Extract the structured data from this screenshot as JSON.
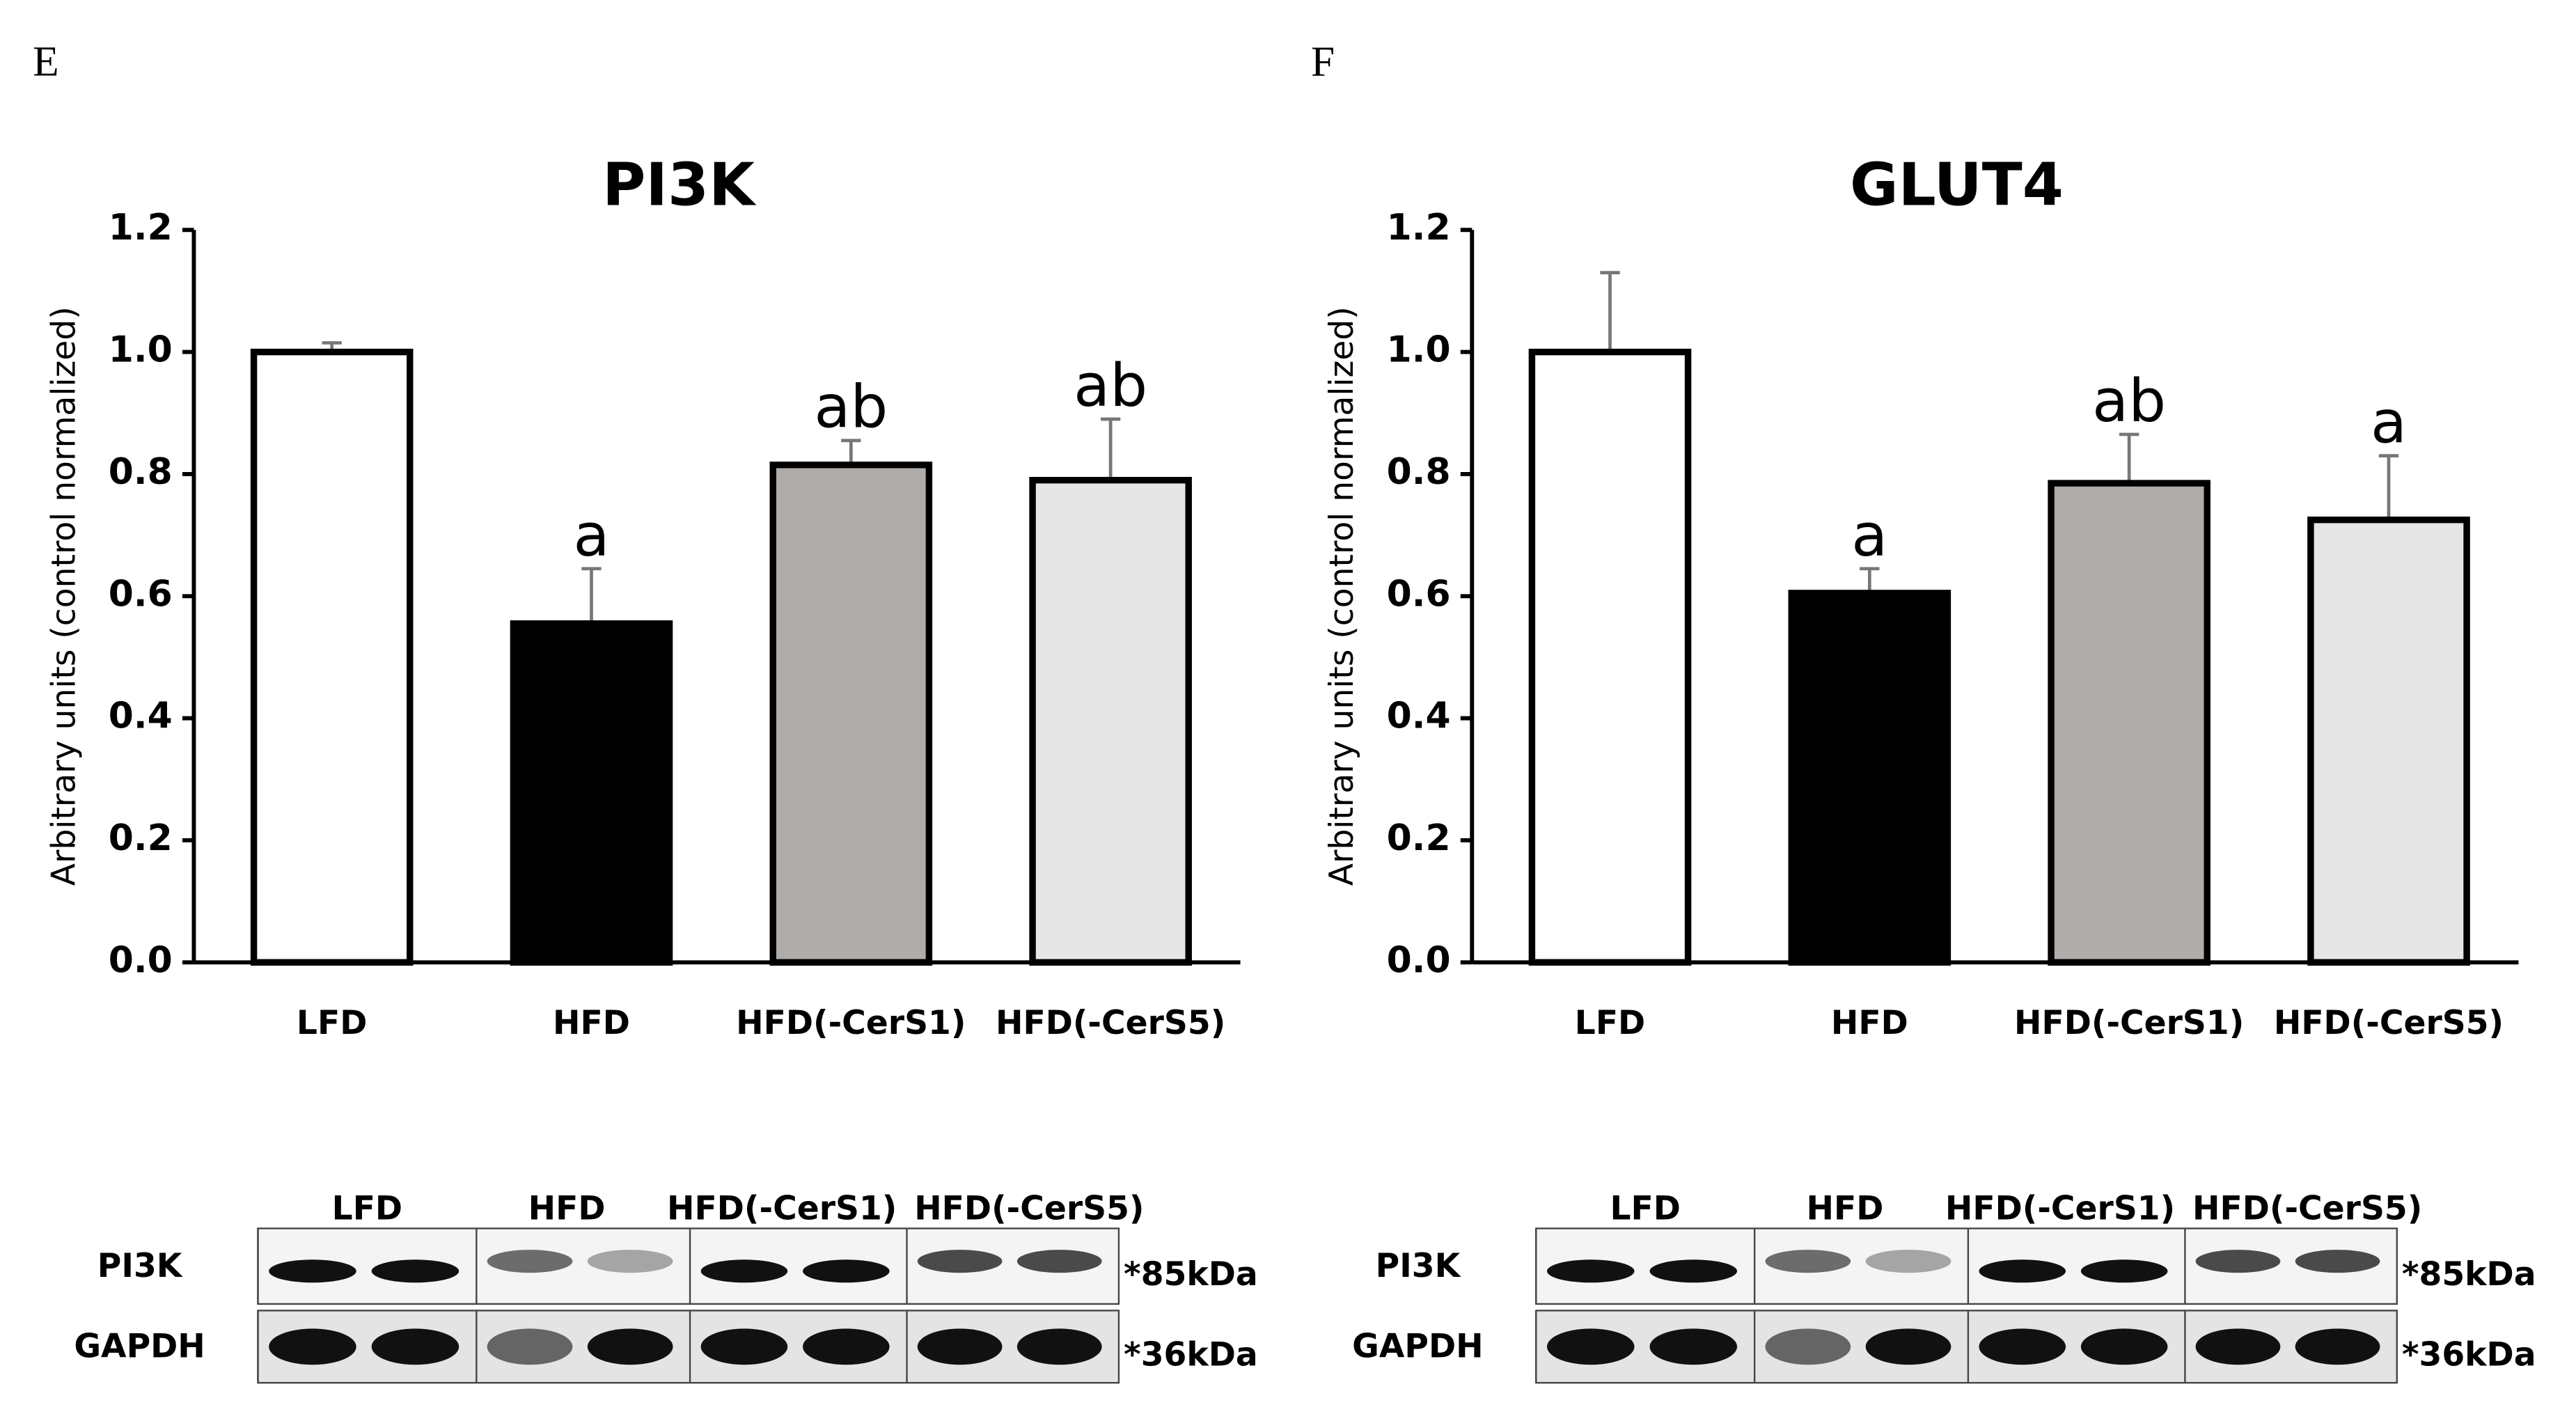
{
  "chart_data": [
    {
      "type": "bar",
      "panel": "E",
      "title": "PI3K",
      "y_label": "Arbitrary units (control normalized)",
      "categories": [
        "LFD",
        "HFD",
        "HFD(-CerS1)",
        "HFD(-CerS5)"
      ],
      "values": [
        1.0,
        0.555,
        0.815,
        0.79
      ],
      "errors": [
        0.015,
        0.09,
        0.04,
        0.1
      ],
      "annotations": [
        null,
        "a",
        "ab",
        "ab"
      ],
      "colors": [
        "#ffffff",
        "#000000",
        "#b0aca9",
        "#e6e6e6"
      ],
      "ylim": [
        0,
        1.2
      ],
      "yticks": [
        {
          "value": 0,
          "label": "0.0"
        },
        0.2,
        0.4,
        0.6,
        0.8,
        {
          "value": 1,
          "label": "1.0"
        },
        1.2
      ],
      "blot": {
        "lanes": [
          "LFD",
          "HFD",
          "HFD(-CerS1)",
          "HFD(-CerS5)"
        ],
        "rows": [
          "PI3K",
          "GAPDH"
        ],
        "sizes": [
          "*85kDa",
          "*36kDa"
        ]
      }
    },
    {
      "type": "bar",
      "panel": "F",
      "title": "GLUT4",
      "y_label": "Arbitrary units (control normalized)",
      "categories": [
        "LFD",
        "HFD",
        "HFD(-CerS1)",
        "HFD(-CerS5)"
      ],
      "values": [
        1.0,
        0.605,
        0.785,
        0.725
      ],
      "errors": [
        0.13,
        0.04,
        0.08,
        0.105
      ],
      "annotations": [
        null,
        "a",
        "ab",
        "a"
      ],
      "colors": [
        "#ffffff",
        "#000000",
        "#b0aca9",
        "#e6e6e6"
      ],
      "ylim": [
        0,
        1.2
      ],
      "yticks": [
        {
          "value": 0,
          "label": "0.0"
        },
        0.2,
        0.4,
        0.6,
        0.8,
        {
          "value": 1,
          "label": "1.0"
        },
        1.2
      ],
      "blot": {
        "lanes": [
          "LFD",
          "HFD",
          "HFD(-CerS1)",
          "HFD(-CerS5)"
        ],
        "rows": [
          "PI3K",
          "GAPDH"
        ],
        "sizes": [
          "*85kDa",
          "*36kDa"
        ]
      }
    }
  ]
}
